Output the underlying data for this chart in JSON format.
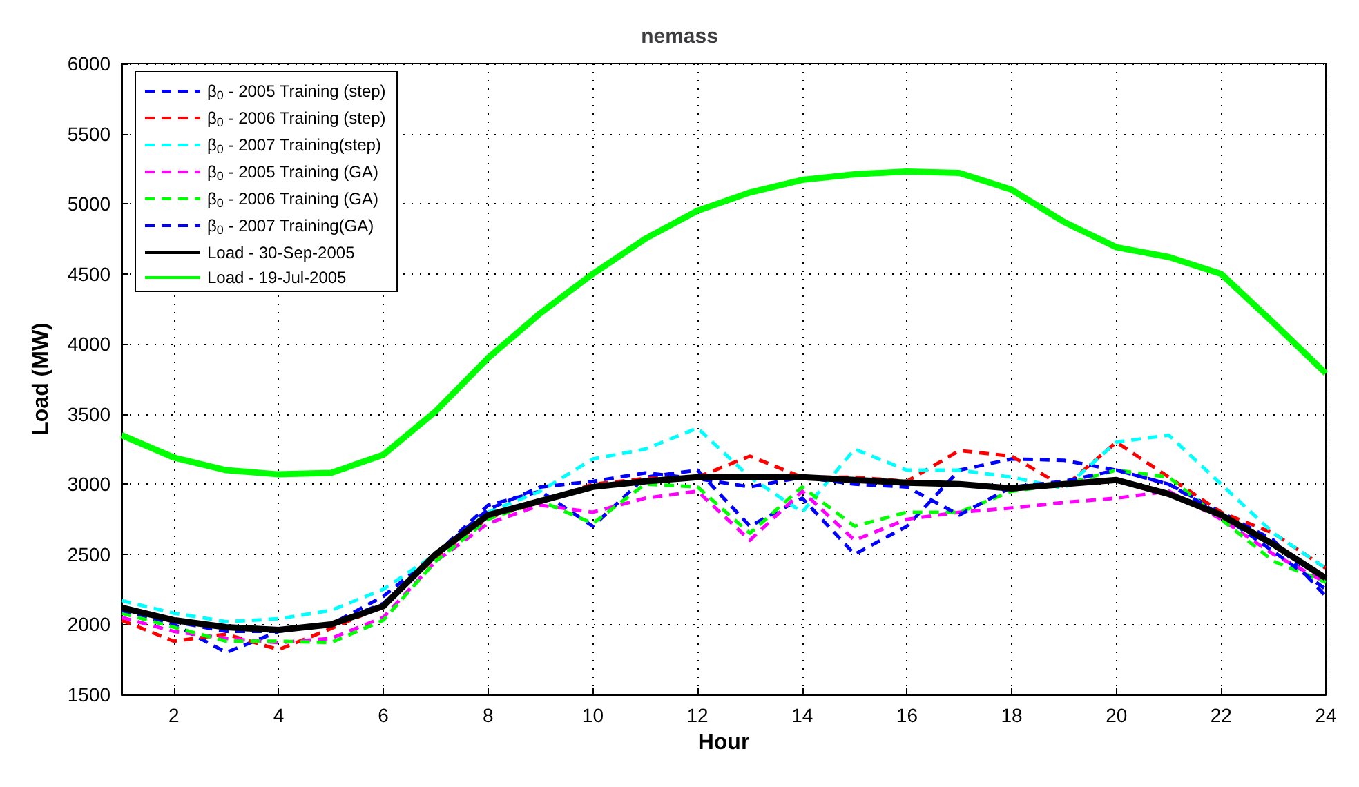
{
  "chart_data": {
    "type": "line",
    "title": "nemass",
    "xlabel": "Hour",
    "ylabel": "Load (MW)",
    "x": [
      1,
      2,
      3,
      4,
      5,
      6,
      7,
      8,
      9,
      10,
      11,
      12,
      13,
      14,
      15,
      16,
      17,
      18,
      19,
      20,
      21,
      22,
      23,
      24
    ],
    "xlim": [
      1,
      24
    ],
    "xticks": [
      2,
      4,
      6,
      8,
      10,
      12,
      14,
      16,
      18,
      20,
      22,
      24
    ],
    "ylim": [
      1500,
      6000
    ],
    "yticks": [
      1500,
      2000,
      2500,
      3000,
      3500,
      4000,
      4500,
      5000,
      5500,
      6000
    ],
    "grid": true,
    "legend": "top left",
    "marker": "none",
    "series": [
      {
        "name": "β$_{0}$ - 2005 Training (step)",
        "color": "#0000ff",
        "line_style": "dashed",
        "values": [
          2100,
          2000,
          1800,
          1950,
          2000,
          2200,
          2500,
          2850,
          2950,
          2700,
          3050,
          3100,
          2700,
          2900,
          2500,
          2700,
          3100,
          3180,
          3170,
          3100,
          3000,
          2800,
          2600,
          2200
        ]
      },
      {
        "name": "β$_{0}$ - 2006 Training (step)",
        "color": "#ff0000",
        "line_style": "dashed",
        "values": [
          2030,
          1880,
          1930,
          1820,
          1970,
          2130,
          2480,
          2760,
          2870,
          3000,
          3040,
          3050,
          3200,
          3050,
          3050,
          3020,
          3240,
          3200,
          2980,
          3300,
          3050,
          2800,
          2650,
          2400
        ]
      },
      {
        "name": "β$_{0}$ - 2007 Training(step)",
        "color": "#00ffff",
        "line_style": "dashed",
        "values": [
          2170,
          2080,
          2020,
          2040,
          2100,
          2250,
          2500,
          2800,
          2950,
          3180,
          3250,
          3400,
          3050,
          2800,
          3250,
          3100,
          3100,
          3050,
          2970,
          3300,
          3350,
          3000,
          2650,
          2400
        ]
      },
      {
        "name": "β$_{0}$ - 2005 Training (GA)",
        "color": "#ff00ff",
        "line_style": "dashed",
        "values": [
          2050,
          1950,
          1900,
          1870,
          1900,
          2050,
          2450,
          2720,
          2850,
          2800,
          2900,
          2950,
          2600,
          2950,
          2600,
          2750,
          2800,
          2830,
          2870,
          2900,
          2950,
          2750,
          2500,
          2300
        ]
      },
      {
        "name": "β$_{0}$ - 2006 Training (GA)",
        "color": "#00ff00",
        "line_style": "dashed",
        "values": [
          2080,
          1980,
          1880,
          1880,
          1870,
          2030,
          2450,
          2750,
          2880,
          2720,
          3000,
          2980,
          2650,
          2980,
          2700,
          2800,
          2800,
          2950,
          3000,
          3100,
          3050,
          2750,
          2450,
          2300
        ]
      },
      {
        "name": "β$_{0}$ - 2007 Training(GA)",
        "color": "#0000ff",
        "line_style": "dashed",
        "values": [
          2100,
          2020,
          1950,
          1950,
          2000,
          2150,
          2500,
          2820,
          2980,
          3020,
          3080,
          3040,
          2980,
          3050,
          3000,
          2980,
          2780,
          2980,
          3020,
          3100,
          3000,
          2780,
          2520,
          2250
        ]
      },
      {
        "name": "Load - 30-Sep-2005",
        "color": "#000000",
        "line_style": "solid",
        "values": [
          2120,
          2030,
          1980,
          1960,
          2000,
          2130,
          2500,
          2780,
          2880,
          2980,
          3020,
          3050,
          3050,
          3050,
          3030,
          3010,
          3000,
          2970,
          3000,
          3030,
          2930,
          2780,
          2570,
          2330
        ]
      },
      {
        "name": "Load - 19-Jul-2005",
        "color": "#00ff00",
        "line_style": "solid",
        "values": [
          3350,
          3190,
          3100,
          3070,
          3080,
          3210,
          3520,
          3900,
          4220,
          4500,
          4750,
          4950,
          5080,
          5170,
          5210,
          5230,
          5220,
          5100,
          4870,
          4690,
          4620,
          4500,
          4150,
          3790
        ]
      }
    ]
  }
}
